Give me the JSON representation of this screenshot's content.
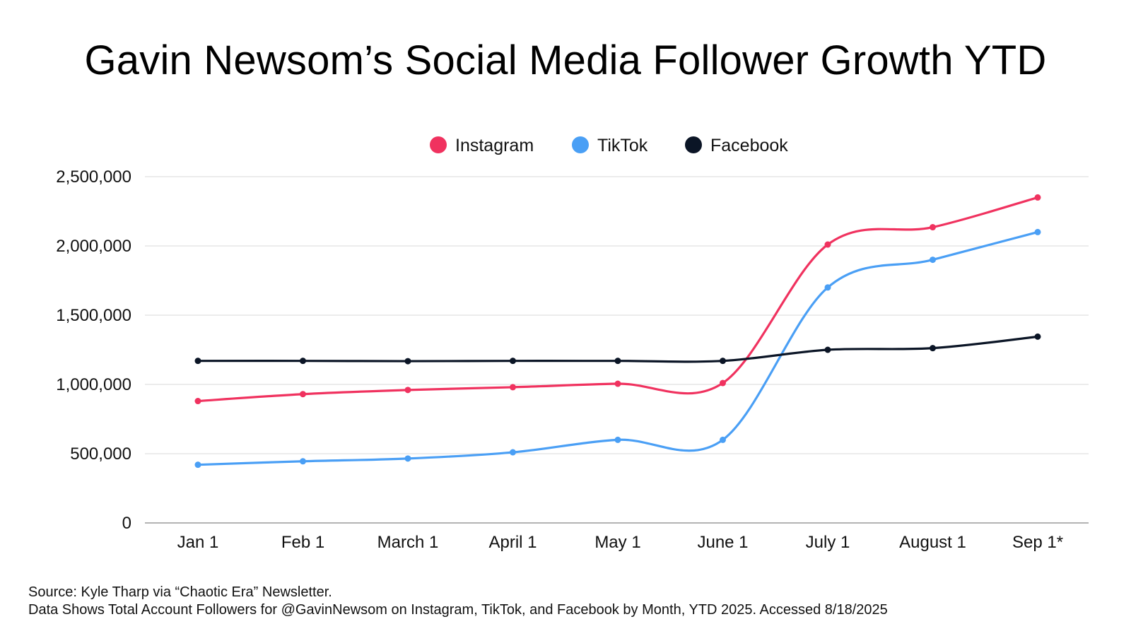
{
  "title": "Gavin Newsom’s Social Media Follower Growth YTD",
  "footer": {
    "source": "Source: Kyle Tharp via “Chaotic Era” Newsletter.",
    "note": "Data Shows Total Account Followers for @GavinNewsom on Instagram, TikTok, and Facebook by Month, YTD 2025. Accessed 8/18/2025"
  },
  "chart_data": {
    "type": "line",
    "categories": [
      "Jan 1",
      "Feb 1",
      "March 1",
      "April 1",
      "May 1",
      "June 1",
      "July 1",
      "August 1",
      "Sep 1*"
    ],
    "series": [
      {
        "name": "Instagram",
        "color": "#f0325f",
        "values": [
          880000,
          930000,
          960000,
          980000,
          1005000,
          1010000,
          2010000,
          2135000,
          2350000
        ]
      },
      {
        "name": "TikTok",
        "color": "#4a9ff5",
        "values": [
          420000,
          445000,
          465000,
          510000,
          600000,
          600000,
          1700000,
          1900000,
          2100000
        ]
      },
      {
        "name": "Facebook",
        "color": "#0b1526",
        "values": [
          1170000,
          1170000,
          1168000,
          1170000,
          1170000,
          1170000,
          1250000,
          1262000,
          1345000
        ]
      }
    ],
    "y_ticks": [
      "0",
      "500,000",
      "1,000,000",
      "1,500,000",
      "2,000,000",
      "2,500,000"
    ],
    "ylim": [
      0,
      2500000
    ],
    "grid": true,
    "legend_position": "top-center"
  }
}
